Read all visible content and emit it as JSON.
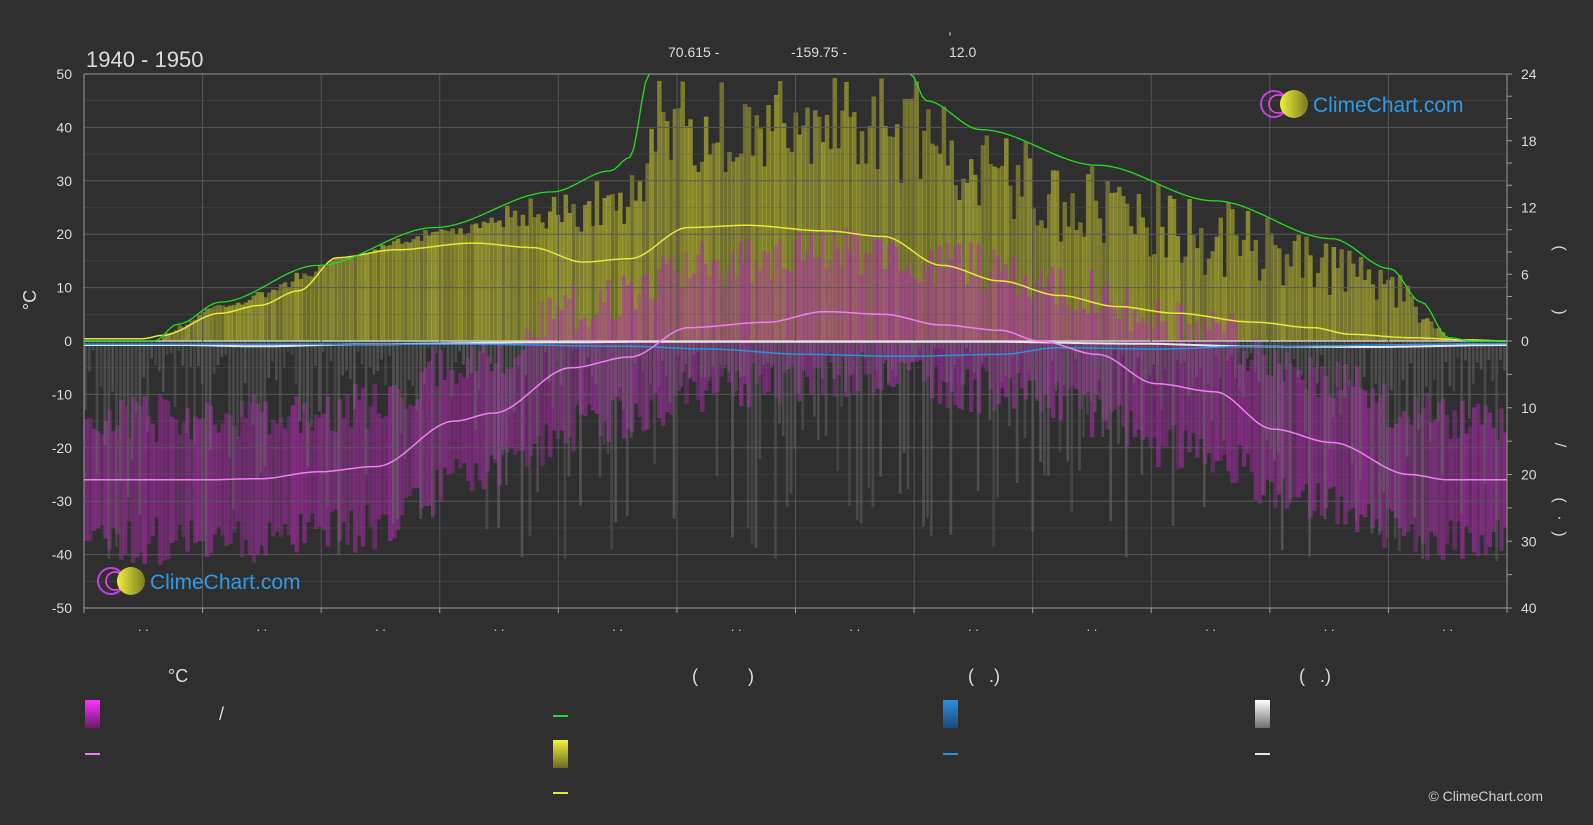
{
  "header": {
    "period": "1940 - 1950",
    "comma": ",",
    "lat": "70.615 -",
    "lon": "-159.75 -",
    "elev": "12.0"
  },
  "logo_text": "ClimeChart.com",
  "copyright": "© ClimeChart.com",
  "legend": {
    "temp_header": "°C",
    "sun_header": "(          )",
    "rain_header": "(   .)",
    "snow_header": "(   .)",
    "slash": "/"
  },
  "colors": {
    "background": "#2f2f2f",
    "daylight": "#22dd22",
    "sunshine": "#e8e83a",
    "temp_mean": "#f07ef0",
    "temp_band": "#d030d0",
    "rain": "#2e8fe0",
    "snow": "#e6e6e6",
    "logo": "#2f9be8"
  },
  "chart_data": {
    "type": "area",
    "left_axis": {
      "label": "°C",
      "ylim": [
        -50,
        50
      ],
      "ticks": [
        50,
        40,
        30,
        20,
        10,
        0,
        -10,
        -20,
        -30,
        -40,
        -50
      ]
    },
    "right_axis_top": {
      "ylim": [
        0,
        24
      ],
      "ticks": [
        24,
        18,
        12,
        6,
        0
      ],
      "label_glyphs": [
        "(",
        ")"
      ]
    },
    "right_axis_bottom": {
      "ylim": [
        0,
        40
      ],
      "ticks": [
        0,
        10,
        20,
        30,
        40
      ],
      "label_glyphs": [
        "/",
        "(",
        "·",
        ")"
      ]
    },
    "x_tick_label": ". .",
    "x_tick_count": 12,
    "grid": true,
    "months": [
      1,
      2,
      3,
      4,
      5,
      6,
      7,
      8,
      9,
      10,
      11,
      12
    ],
    "day_of_year_axis": [
      0,
      365
    ],
    "series": [
      {
        "key": "daylight_hours",
        "axis": "right_top",
        "points": [
          [
            0,
            0
          ],
          [
            18,
            0
          ],
          [
            24,
            1.5
          ],
          [
            35,
            3.5
          ],
          [
            60,
            6.8
          ],
          [
            90,
            10.2
          ],
          [
            120,
            13.4
          ],
          [
            135,
            15.3
          ],
          [
            140,
            16.5
          ],
          [
            145,
            24
          ],
          [
            212,
            24
          ],
          [
            216,
            21.6
          ],
          [
            230,
            19
          ],
          [
            260,
            15.8
          ],
          [
            290,
            12.6
          ],
          [
            320,
            9.2
          ],
          [
            335,
            6.5
          ],
          [
            343,
            3.5
          ],
          [
            350,
            0.3
          ],
          [
            356,
            0
          ],
          [
            365,
            0
          ]
        ]
      },
      {
        "key": "sunshine_hours",
        "axis": "right_top",
        "points": [
          [
            0,
            0.2
          ],
          [
            15,
            0.2
          ],
          [
            20,
            0.5
          ],
          [
            35,
            2.5
          ],
          [
            45,
            3.2
          ],
          [
            55,
            4.5
          ],
          [
            65,
            7.5
          ],
          [
            80,
            8.2
          ],
          [
            100,
            8.8
          ],
          [
            115,
            8.4
          ],
          [
            128,
            7.1
          ],
          [
            140,
            7.4
          ],
          [
            155,
            10.2
          ],
          [
            170,
            10.4
          ],
          [
            190,
            9.9
          ],
          [
            205,
            9.4
          ],
          [
            220,
            6.8
          ],
          [
            235,
            5.4
          ],
          [
            250,
            4.1
          ],
          [
            265,
            3.1
          ],
          [
            280,
            2.5
          ],
          [
            300,
            1.7
          ],
          [
            315,
            1.2
          ],
          [
            325,
            0.6
          ],
          [
            340,
            0.3
          ],
          [
            355,
            0.1
          ],
          [
            365,
            0
          ]
        ]
      },
      {
        "key": "temp_mean",
        "axis": "left",
        "points": [
          [
            0,
            -26
          ],
          [
            30,
            -26
          ],
          [
            45,
            -25.8
          ],
          [
            60,
            -24.5
          ],
          [
            75,
            -23.5
          ],
          [
            95,
            -15
          ],
          [
            105,
            -13.5
          ],
          [
            125,
            -5
          ],
          [
            140,
            -3
          ],
          [
            155,
            2.5
          ],
          [
            175,
            3.5
          ],
          [
            190,
            5.5
          ],
          [
            205,
            5
          ],
          [
            220,
            3
          ],
          [
            235,
            2
          ],
          [
            245,
            0
          ],
          [
            260,
            -2.5
          ],
          [
            275,
            -8
          ],
          [
            290,
            -9.5
          ],
          [
            305,
            -16.5
          ],
          [
            320,
            -19
          ],
          [
            340,
            -25
          ],
          [
            350,
            -26
          ],
          [
            365,
            -26
          ]
        ]
      },
      {
        "key": "rain_mm",
        "axis": "right_bottom",
        "points": [
          [
            0,
            0.5
          ],
          [
            100,
            0.5
          ],
          [
            140,
            0.8
          ],
          [
            160,
            1.2
          ],
          [
            185,
            2
          ],
          [
            210,
            2.3
          ],
          [
            235,
            2
          ],
          [
            250,
            1
          ],
          [
            275,
            1.2
          ],
          [
            300,
            0.8
          ],
          [
            365,
            0.4
          ]
        ]
      },
      {
        "key": "snow_mm",
        "axis": "right_bottom",
        "points": [
          [
            0,
            0.6
          ],
          [
            25,
            0.6
          ],
          [
            45,
            0.8
          ],
          [
            70,
            0.5
          ],
          [
            120,
            0.2
          ],
          [
            150,
            0.1
          ],
          [
            230,
            0.1
          ],
          [
            270,
            0.4
          ],
          [
            300,
            0.8
          ],
          [
            330,
            0.9
          ],
          [
            365,
            0.6
          ]
        ]
      }
    ],
    "daily_bands_summary": {
      "temp_min_max_range": "about -45 to +8 °C",
      "sunshine_daily_max_hours": 23,
      "precip_daily_max_mm": 40
    }
  }
}
